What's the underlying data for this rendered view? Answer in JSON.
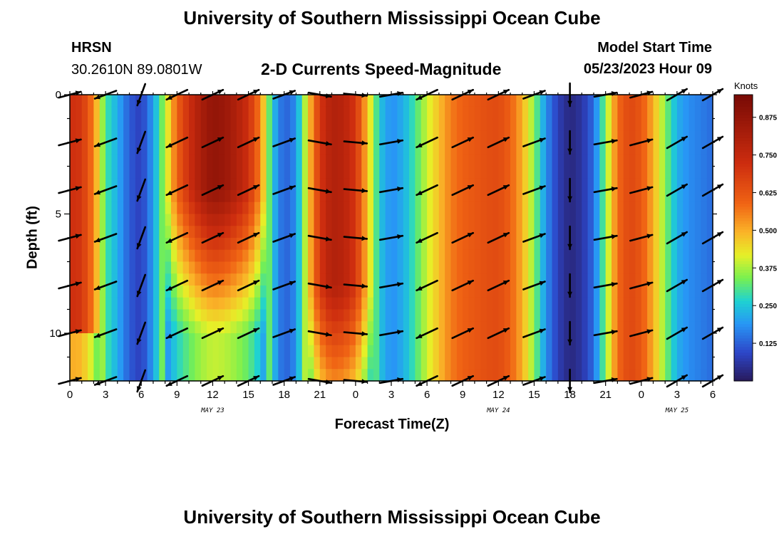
{
  "header": {
    "title": "University of Southern Mississippi Ocean Cube",
    "station": "HRSN",
    "coords": "30.2610N  89.0801W",
    "subtitle": "2-D Currents Speed-Magnitude",
    "model_label": "Model Start Time",
    "model_time": "05/23/2023 Hour 09",
    "bottom_title": "University of Southern Mississippi Ocean Cube"
  },
  "chart_data": {
    "type": "heatmap",
    "title": "2-D Currents Speed-Magnitude",
    "xlabel": "Forecast Time(Z)",
    "ylabel": "Depth (ft)",
    "xlim": [
      0,
      54
    ],
    "ylim": [
      0,
      12
    ],
    "x_ticks": [
      {
        "at": 0,
        "label": "0"
      },
      {
        "at": 3,
        "label": "3"
      },
      {
        "at": 6,
        "label": "6"
      },
      {
        "at": 9,
        "label": "9"
      },
      {
        "at": 12,
        "label": "12"
      },
      {
        "at": 15,
        "label": "15"
      },
      {
        "at": 18,
        "label": "18"
      },
      {
        "at": 21,
        "label": "21"
      },
      {
        "at": 24,
        "label": "0"
      },
      {
        "at": 27,
        "label": "3"
      },
      {
        "at": 30,
        "label": "6"
      },
      {
        "at": 33,
        "label": "9"
      },
      {
        "at": 36,
        "label": "12"
      },
      {
        "at": 39,
        "label": "15"
      },
      {
        "at": 42,
        "label": "18"
      },
      {
        "at": 45,
        "label": "21"
      },
      {
        "at": 48,
        "label": "0"
      },
      {
        "at": 51,
        "label": "3"
      },
      {
        "at": 54,
        "label": "6"
      }
    ],
    "y_ticks": [
      {
        "at": 0,
        "label": "0"
      },
      {
        "at": 5,
        "label": "5"
      },
      {
        "at": 10,
        "label": "10"
      }
    ],
    "date_labels": [
      {
        "at": 12,
        "label": "MAY 23"
      },
      {
        "at": 36,
        "label": "MAY 24"
      },
      {
        "at": 51,
        "label": "MAY 25"
      }
    ],
    "speed_profile": [
      [
        0,
        0.72
      ],
      [
        1,
        0.7
      ],
      [
        2,
        0.55
      ],
      [
        3,
        0.3
      ],
      [
        4,
        0.22
      ],
      [
        5,
        0.12
      ],
      [
        6,
        0.08
      ],
      [
        7,
        0.2
      ],
      [
        8,
        0.38
      ],
      [
        9,
        0.6
      ],
      [
        10,
        0.72
      ],
      [
        11,
        0.82
      ],
      [
        12,
        0.88
      ],
      [
        13,
        0.86
      ],
      [
        14,
        0.8
      ],
      [
        15,
        0.72
      ],
      [
        16,
        0.55
      ],
      [
        17,
        0.25
      ],
      [
        18,
        0.12
      ],
      [
        19,
        0.18
      ],
      [
        20,
        0.45
      ],
      [
        21,
        0.7
      ],
      [
        22,
        0.8
      ],
      [
        23,
        0.78
      ],
      [
        24,
        0.7
      ],
      [
        25,
        0.48
      ],
      [
        26,
        0.25
      ],
      [
        27,
        0.18
      ],
      [
        28,
        0.22
      ],
      [
        29,
        0.3
      ],
      [
        30,
        0.4
      ],
      [
        31,
        0.48
      ],
      [
        32,
        0.56
      ],
      [
        33,
        0.6
      ],
      [
        34,
        0.62
      ],
      [
        35,
        0.64
      ],
      [
        36,
        0.65
      ],
      [
        37,
        0.6
      ],
      [
        38,
        0.5
      ],
      [
        39,
        0.35
      ],
      [
        40,
        0.18
      ],
      [
        41,
        0.08
      ],
      [
        42,
        0.03
      ],
      [
        43,
        0.06
      ],
      [
        44,
        0.14
      ],
      [
        45,
        0.35
      ],
      [
        46,
        0.58
      ],
      [
        47,
        0.66
      ],
      [
        48,
        0.62
      ],
      [
        49,
        0.5
      ],
      [
        50,
        0.35
      ],
      [
        51,
        0.22
      ],
      [
        52,
        0.18
      ],
      [
        53,
        0.16
      ],
      [
        54,
        0.14
      ]
    ],
    "arrow_depths": [
      0,
      2,
      4,
      6,
      8,
      10,
      12
    ],
    "arrow_times": [
      0,
      3,
      6,
      9,
      12,
      15,
      18,
      21,
      24,
      27,
      30,
      33,
      36,
      39,
      42,
      45,
      48,
      51,
      54
    ],
    "arrow_directions_deg": [
      15,
      200,
      250,
      205,
      25,
      25,
      20,
      350,
      355,
      10,
      205,
      25,
      25,
      20,
      270,
      10,
      15,
      30,
      30
    ],
    "colorbar": {
      "title": "Knots",
      "min": 0.0,
      "max": 0.95,
      "ticks": [
        {
          "value": 0.125,
          "label": "0.125"
        },
        {
          "value": 0.25,
          "label": "0.250"
        },
        {
          "value": 0.375,
          "label": "0.375"
        },
        {
          "value": 0.5,
          "label": "0.500"
        },
        {
          "value": 0.625,
          "label": "0.625"
        },
        {
          "value": 0.75,
          "label": "0.750"
        },
        {
          "value": 0.875,
          "label": "0.875"
        }
      ]
    }
  }
}
